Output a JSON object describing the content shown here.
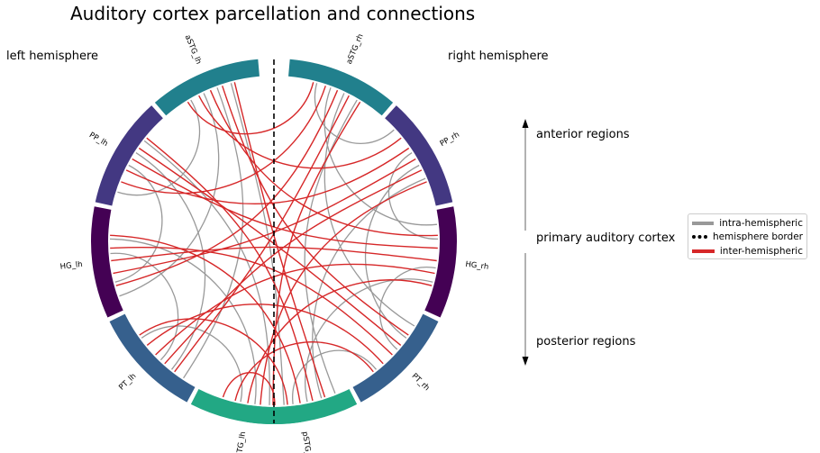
{
  "title": "Auditory cortex parcellation and connections",
  "hemispheres": {
    "left": "left hemisphere",
    "right": "right hemisphere"
  },
  "side_axis": {
    "anterior": "anterior regions",
    "primary": "primary auditory cortex",
    "posterior": "posterior regions"
  },
  "legend": [
    {
      "label": "intra-hemispheric",
      "color": "#999999",
      "style": "solid"
    },
    {
      "label": "hemisphere border",
      "color": "#000000",
      "style": "dotted"
    },
    {
      "label": "inter-hemispheric",
      "color": "#d62728",
      "style": "solid"
    }
  ],
  "regions": [
    {
      "label": "aSTG_lh",
      "color": "#21808d",
      "hemisphere": "left"
    },
    {
      "label": "PP_lh",
      "color": "#433882",
      "hemisphere": "left"
    },
    {
      "label": "HG_lh",
      "color": "#440154",
      "hemisphere": "left"
    },
    {
      "label": "PT_lh",
      "color": "#36608d",
      "hemisphere": "left"
    },
    {
      "label": "pSTG_lh",
      "color": "#22a884",
      "hemisphere": "left"
    },
    {
      "label": "aSTG_rh",
      "color": "#21808d",
      "hemisphere": "right"
    },
    {
      "label": "PP_rh",
      "color": "#433882",
      "hemisphere": "right"
    },
    {
      "label": "HG_rh",
      "color": "#440154",
      "hemisphere": "right"
    },
    {
      "label": "PT_rh",
      "color": "#36608d",
      "hemisphere": "right"
    },
    {
      "label": "pSTG_rh",
      "color": "#22a884",
      "hemisphere": "right"
    }
  ],
  "colors": {
    "inter": "#d62728",
    "intra": "#999999",
    "border": "#000000"
  }
}
